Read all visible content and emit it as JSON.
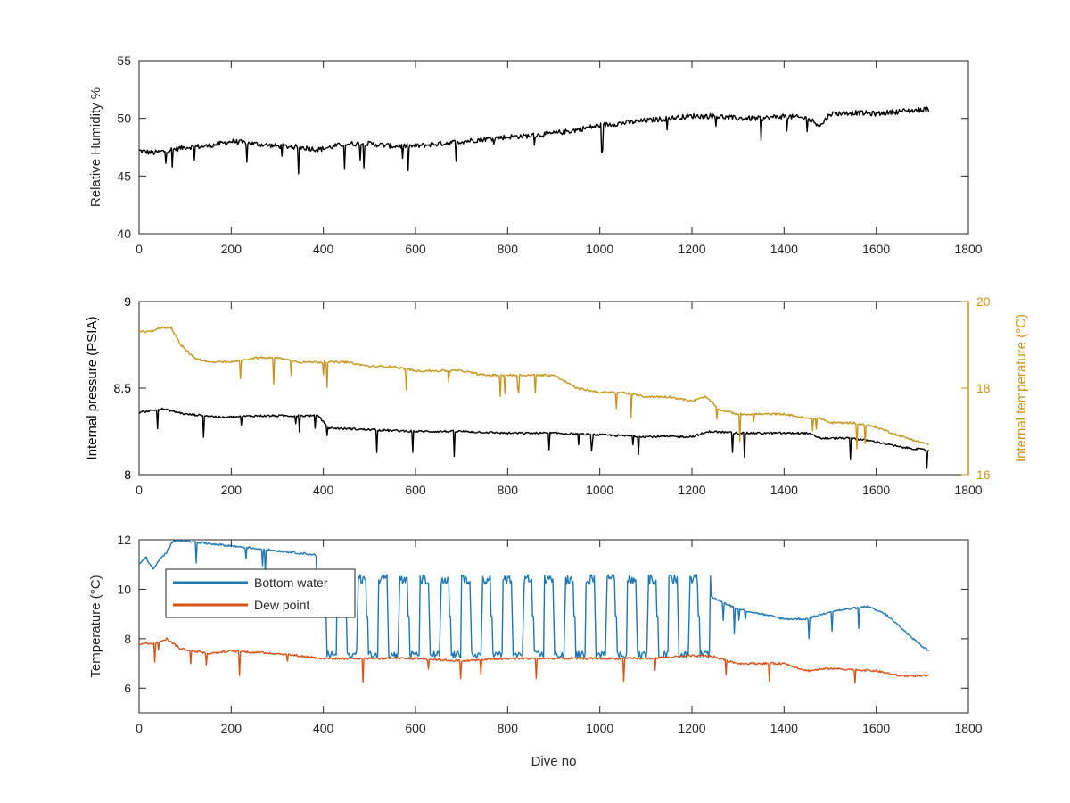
{
  "chart_data": [
    {
      "type": "line",
      "panel": "top",
      "ylabel": "Relative Humidity %",
      "xlabel": "",
      "xlim": [
        0,
        1800
      ],
      "ylim": [
        40,
        55
      ],
      "xticks": [
        "0",
        "200",
        "400",
        "600",
        "800",
        "1000",
        "1200",
        "1400",
        "1600",
        "1800"
      ],
      "yticks": [
        "40",
        "45",
        "50",
        "55"
      ],
      "grid": false,
      "series": [
        {
          "color": "#000000",
          "x": [
            0,
            30,
            60,
            100,
            150,
            200,
            250,
            300,
            350,
            390,
            450,
            500,
            550,
            600,
            650,
            700,
            750,
            800,
            850,
            900,
            950,
            1000,
            1050,
            1100,
            1150,
            1200,
            1250,
            1300,
            1350,
            1400,
            1450,
            1480,
            1500,
            1550,
            1600,
            1650,
            1715
          ],
          "y": [
            47.2,
            47.0,
            47.2,
            47.5,
            47.6,
            48.0,
            47.8,
            47.6,
            47.5,
            47.3,
            47.8,
            47.8,
            47.6,
            47.6,
            47.8,
            48.0,
            48.2,
            48.4,
            48.5,
            48.7,
            49.0,
            49.4,
            49.6,
            49.8,
            50.0,
            50.2,
            50.2,
            50.0,
            50.0,
            50.2,
            50.0,
            49.4,
            50.4,
            50.5,
            50.4,
            50.6,
            50.8
          ]
        }
      ]
    },
    {
      "type": "line",
      "panel": "middle",
      "ylabel": "Internal pressure (PSIA)",
      "y2label": "Internal temperature (°C)",
      "xlim": [
        0,
        1800
      ],
      "ylim": [
        8,
        9
      ],
      "y2lim": [
        16,
        20
      ],
      "xticks": [
        "0",
        "200",
        "400",
        "600",
        "800",
        "1000",
        "1200",
        "1400",
        "1600",
        "1800"
      ],
      "yticks": [
        "8",
        "8.5",
        "9"
      ],
      "y2ticks": [
        "16",
        "18",
        "20"
      ],
      "y2color": "#c8961e",
      "grid": false,
      "series": [
        {
          "color": "#000000",
          "axis": "left",
          "x": [
            0,
            50,
            100,
            150,
            180,
            250,
            300,
            350,
            390,
            410,
            500,
            600,
            700,
            800,
            900,
            1000,
            1100,
            1200,
            1240,
            1300,
            1400,
            1450,
            1480,
            1550,
            1600,
            1650,
            1715
          ],
          "y": [
            8.36,
            8.38,
            8.35,
            8.34,
            8.33,
            8.34,
            8.34,
            8.34,
            8.34,
            8.27,
            8.26,
            8.25,
            8.25,
            8.24,
            8.24,
            8.23,
            8.22,
            8.22,
            8.25,
            8.24,
            8.24,
            8.24,
            8.21,
            8.21,
            8.19,
            8.16,
            8.14
          ]
        },
        {
          "color": "#c8961e",
          "axis": "right",
          "x": [
            0,
            20,
            50,
            70,
            90,
            120,
            150,
            180,
            200,
            250,
            300,
            350,
            400,
            450,
            500,
            550,
            600,
            650,
            700,
            750,
            800,
            850,
            900,
            950,
            1000,
            1050,
            1100,
            1150,
            1200,
            1230,
            1260,
            1300,
            1350,
            1400,
            1450,
            1480,
            1500,
            1550,
            1600,
            1650,
            1680,
            1715
          ],
          "y": [
            19.3,
            19.3,
            19.4,
            19.4,
            19.0,
            18.7,
            18.6,
            18.6,
            18.6,
            18.7,
            18.7,
            18.6,
            18.6,
            18.6,
            18.5,
            18.5,
            18.4,
            18.4,
            18.4,
            18.3,
            18.3,
            18.3,
            18.3,
            18.0,
            17.9,
            17.9,
            17.8,
            17.8,
            17.7,
            17.8,
            17.5,
            17.4,
            17.4,
            17.4,
            17.3,
            17.3,
            17.2,
            17.2,
            17.1,
            16.9,
            16.8,
            16.7
          ]
        }
      ]
    },
    {
      "type": "line",
      "panel": "bottom",
      "ylabel": "Temperature (°C)",
      "xlabel": "Dive no",
      "xlim": [
        0,
        1800
      ],
      "ylim": [
        5,
        12
      ],
      "xticks": [
        "0",
        "200",
        "400",
        "600",
        "800",
        "1000",
        "1200",
        "1400",
        "1600",
        "1800"
      ],
      "yticks": [
        "6",
        "8",
        "10",
        "12"
      ],
      "grid": false,
      "legend": "upper-left",
      "series": [
        {
          "name": "Bottom water",
          "color": "#1f77b4",
          "x": [
            0,
            15,
            30,
            45,
            60,
            75,
            1240,
            1300,
            1350,
            1400,
            1450,
            1500,
            1540,
            1580,
            1620,
            1650,
            1680,
            1700,
            1715
          ],
          "y": [
            11.0,
            11.3,
            10.8,
            11.2,
            11.5,
            12.0,
            9.7,
            9.2,
            9.0,
            8.8,
            8.8,
            9.1,
            9.2,
            9.3,
            9.0,
            8.5,
            8.0,
            7.7,
            7.5
          ],
          "oscillation": {
            "x_start": 385,
            "x_end": 1240,
            "low": 7.2,
            "high": 10.6
          }
        },
        {
          "name": "Dew point",
          "color": "#d95319",
          "x": [
            0,
            30,
            60,
            90,
            150,
            200,
            300,
            400,
            500,
            600,
            700,
            800,
            900,
            1000,
            1100,
            1200,
            1240,
            1300,
            1400,
            1450,
            1500,
            1600,
            1650,
            1715
          ],
          "y": [
            7.8,
            7.8,
            8.0,
            7.6,
            7.4,
            7.5,
            7.4,
            7.2,
            7.2,
            7.2,
            7.1,
            7.2,
            7.2,
            7.2,
            7.2,
            7.3,
            7.3,
            7.0,
            7.0,
            6.7,
            6.8,
            6.7,
            6.5,
            6.5
          ]
        }
      ]
    }
  ]
}
